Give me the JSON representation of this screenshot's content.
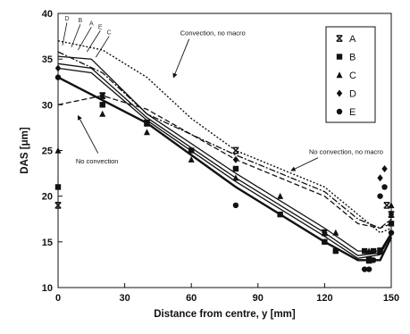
{
  "chart_data": {
    "type": "scatter",
    "title": "",
    "xlabel": "Distance from centre, y [mm]",
    "ylabel": "DAS [μm]",
    "xlim": [
      0,
      150
    ],
    "ylim": [
      10,
      40
    ],
    "xticks": [
      0,
      30,
      60,
      90,
      120,
      150
    ],
    "yticks": [
      10,
      15,
      20,
      25,
      30,
      35,
      40
    ],
    "grid": false,
    "legend_position": "top-right",
    "series": [
      {
        "name": "A",
        "marker": "x",
        "points": [
          [
            0,
            19
          ],
          [
            20,
            31
          ],
          [
            40,
            28
          ],
          [
            80,
            25
          ],
          [
            120,
            16
          ],
          [
            140,
            13
          ],
          [
            145,
            14
          ],
          [
            148,
            19
          ],
          [
            150,
            18
          ]
        ]
      },
      {
        "name": "B",
        "marker": "square",
        "points": [
          [
            0,
            21
          ],
          [
            20,
            30
          ],
          [
            40,
            28
          ],
          [
            60,
            25
          ],
          [
            80,
            23
          ],
          [
            100,
            18
          ],
          [
            120,
            15
          ],
          [
            125,
            14
          ],
          [
            138,
            14
          ],
          [
            140,
            13
          ],
          [
            142,
            14
          ],
          [
            145,
            14
          ],
          [
            150,
            17
          ]
        ]
      },
      {
        "name": "C",
        "marker": "triangle",
        "points": [
          [
            0,
            25
          ],
          [
            20,
            29
          ],
          [
            40,
            27
          ],
          [
            60,
            24
          ],
          [
            80,
            22
          ],
          [
            100,
            20
          ],
          [
            120,
            16
          ],
          [
            125,
            16
          ],
          [
            140,
            14
          ],
          [
            145,
            14
          ],
          [
            150,
            19
          ]
        ]
      },
      {
        "name": "D",
        "marker": "diamond",
        "points": [
          [
            0,
            34
          ],
          [
            20,
            31
          ],
          [
            40,
            28
          ],
          [
            80,
            24
          ],
          [
            120,
            16
          ],
          [
            140,
            13
          ],
          [
            145,
            22
          ],
          [
            147,
            23
          ],
          [
            150,
            18
          ]
        ]
      },
      {
        "name": "E",
        "marker": "circle",
        "points": [
          [
            0,
            33
          ],
          [
            20,
            30
          ],
          [
            40,
            28
          ],
          [
            80,
            19
          ],
          [
            120,
            15
          ],
          [
            138,
            12
          ],
          [
            140,
            12
          ],
          [
            142,
            13
          ],
          [
            145,
            20
          ],
          [
            147,
            21
          ],
          [
            150,
            16
          ]
        ]
      }
    ],
    "curves": [
      {
        "style": "solid",
        "points": [
          [
            0,
            35.3
          ],
          [
            15,
            35.0
          ],
          [
            40,
            29.0
          ],
          [
            80,
            22.5
          ],
          [
            120,
            16.5
          ],
          [
            135,
            14.0
          ],
          [
            145,
            14.0
          ],
          [
            150,
            16.0
          ]
        ]
      },
      {
        "style": "solid",
        "points": [
          [
            0,
            34.5
          ],
          [
            15,
            34.0
          ],
          [
            40,
            28.6
          ],
          [
            80,
            22.0
          ],
          [
            120,
            16.0
          ],
          [
            135,
            13.5
          ],
          [
            145,
            13.8
          ],
          [
            150,
            16.0
          ]
        ]
      },
      {
        "style": "solid",
        "points": [
          [
            0,
            34.0
          ],
          [
            15,
            33.5
          ],
          [
            40,
            28.3
          ],
          [
            80,
            21.6
          ],
          [
            120,
            15.6
          ],
          [
            135,
            13.2
          ],
          [
            145,
            13.6
          ],
          [
            150,
            15.8
          ]
        ]
      },
      {
        "style": "solid-thick",
        "points": [
          [
            0,
            33.0
          ],
          [
            40,
            28.0
          ],
          [
            80,
            21.0
          ],
          [
            120,
            15.0
          ],
          [
            135,
            13.0
          ],
          [
            145,
            13.0
          ],
          [
            150,
            15.5
          ]
        ]
      },
      {
        "style": "dotted",
        "points": [
          [
            0,
            37.0
          ],
          [
            20,
            36.0
          ],
          [
            40,
            33.0
          ],
          [
            60,
            28.5
          ],
          [
            80,
            25.0
          ],
          [
            100,
            23.0
          ],
          [
            120,
            21.0
          ],
          [
            135,
            18.0
          ],
          [
            145,
            16.0
          ],
          [
            150,
            16.5
          ]
        ]
      },
      {
        "style": "dash-dot",
        "points": [
          [
            0,
            35.8
          ],
          [
            20,
            33.5
          ],
          [
            40,
            29.0
          ],
          [
            80,
            24.5
          ],
          [
            120,
            20.5
          ],
          [
            135,
            17.5
          ],
          [
            145,
            16.5
          ],
          [
            150,
            17.5
          ]
        ]
      },
      {
        "style": "dashed",
        "points": [
          [
            0,
            30.0
          ],
          [
            20,
            31.0
          ],
          [
            40,
            29.5
          ],
          [
            80,
            24.0
          ],
          [
            120,
            20.0
          ],
          [
            135,
            17.0
          ],
          [
            145,
            16.5
          ],
          [
            150,
            17.0
          ]
        ]
      }
    ],
    "data_labels": [
      {
        "text": "D",
        "x": 4,
        "y": 39.2
      },
      {
        "text": "B",
        "x": 10,
        "y": 39.0
      },
      {
        "text": "A",
        "x": 15,
        "y": 38.7
      },
      {
        "text": "E",
        "x": 19,
        "y": 38.3
      },
      {
        "text": "C",
        "x": 23,
        "y": 37.7
      }
    ],
    "annotations": [
      {
        "text": "Convection, no macro",
        "x": 55,
        "y": 37.6,
        "arrow_to": [
          52,
          33.0
        ]
      },
      {
        "text": "No convection",
        "x": 8,
        "y": 23.6,
        "arrow_from": [
          18,
          24.7
        ],
        "arrow_to": [
          9,
          28.8
        ]
      },
      {
        "text": "No convection, no macro",
        "x": 113,
        "y": 24.6,
        "arrow_to": [
          105,
          22.8
        ]
      }
    ]
  }
}
